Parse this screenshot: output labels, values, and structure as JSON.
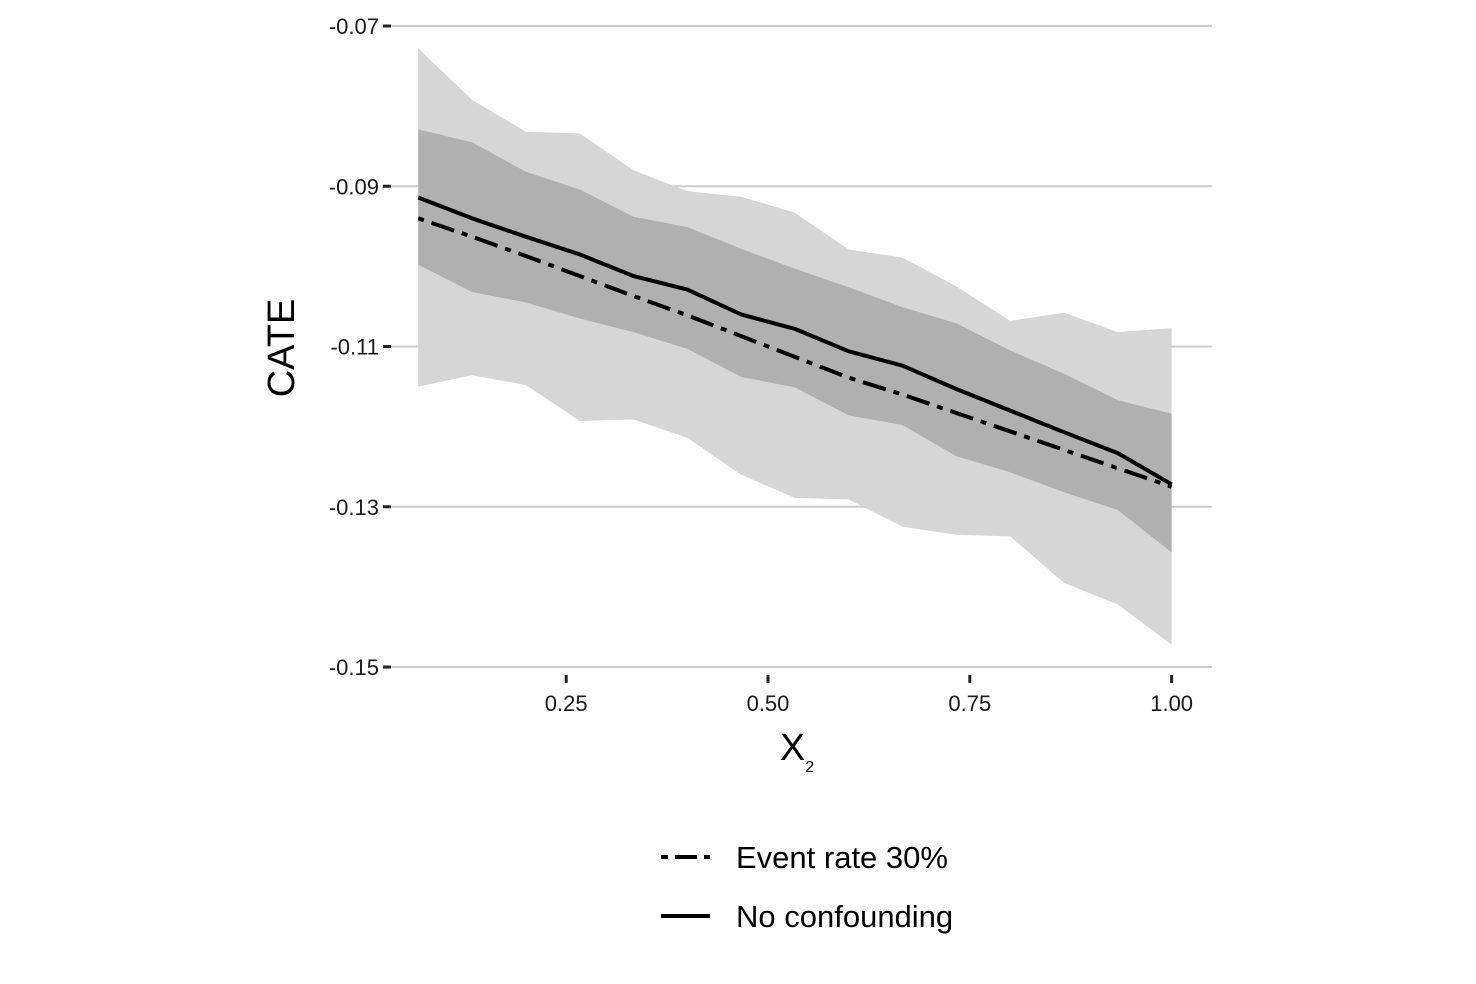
{
  "chart_data": {
    "type": "line",
    "title": "",
    "xlabel": "X",
    "xlabel_subscript": "2",
    "ylabel": "CATE",
    "xlim": [
      0.033,
      1.05
    ],
    "ylim": [
      -0.15,
      -0.07
    ],
    "grid": "horizontal",
    "xticks": [
      {
        "value": 0.25,
        "label": "0.25"
      },
      {
        "value": 0.5,
        "label": "0.50"
      },
      {
        "value": 0.75,
        "label": "0.75"
      },
      {
        "value": 1.0,
        "label": "1.00"
      }
    ],
    "yticks": [
      {
        "value": -0.07,
        "label": "-0.07"
      },
      {
        "value": -0.09,
        "label": "-0.09"
      },
      {
        "value": -0.11,
        "label": "-0.11"
      },
      {
        "value": -0.13,
        "label": "-0.13"
      },
      {
        "value": -0.15,
        "label": "-0.15"
      }
    ],
    "x": [
      0.0667,
      0.1333,
      0.2,
      0.2667,
      0.3333,
      0.4,
      0.4667,
      0.5333,
      0.6,
      0.6667,
      0.7333,
      0.8,
      0.8667,
      0.9333,
      1.0
    ],
    "bands": [
      {
        "name": "outer interval",
        "color": "#d6d6d6",
        "upper": [
          -0.0728,
          -0.0792,
          -0.0832,
          -0.0834,
          -0.088,
          -0.0906,
          -0.0913,
          -0.0933,
          -0.0979,
          -0.0989,
          -0.1025,
          -0.1068,
          -0.1058,
          -0.1082,
          -0.1077
        ],
        "lower": [
          -0.115,
          -0.1136,
          -0.1148,
          -0.1193,
          -0.1191,
          -0.1214,
          -0.126,
          -0.1289,
          -0.1291,
          -0.1325,
          -0.1335,
          -0.1337,
          -0.1395,
          -0.1422,
          -0.1472
        ]
      },
      {
        "name": "inner interval",
        "color": "#b0b0b0",
        "upper": [
          -0.0829,
          -0.0845,
          -0.0882,
          -0.0904,
          -0.0938,
          -0.0951,
          -0.0978,
          -0.1003,
          -0.1026,
          -0.1051,
          -0.1071,
          -0.1105,
          -0.1134,
          -0.1167,
          -0.1184
        ],
        "lower": [
          -0.0998,
          -0.1032,
          -0.1045,
          -0.1065,
          -0.1082,
          -0.1103,
          -0.1138,
          -0.1151,
          -0.1186,
          -0.1198,
          -0.1237,
          -0.1257,
          -0.1282,
          -0.1304,
          -0.1357
        ]
      }
    ],
    "series": [
      {
        "name": "Event rate 30%",
        "style": "dashdot",
        "values": [
          -0.094,
          -0.0963,
          -0.0987,
          -0.1012,
          -0.1037,
          -0.1061,
          -0.1087,
          -0.1113,
          -0.1139,
          -0.116,
          -0.1183,
          -0.1206,
          -0.1229,
          -0.1252,
          -0.1275
        ]
      },
      {
        "name": "No confounding",
        "style": "solid",
        "values": [
          -0.0914,
          -0.094,
          -0.0963,
          -0.0985,
          -0.1012,
          -0.1029,
          -0.106,
          -0.1078,
          -0.1106,
          -0.1124,
          -0.1153,
          -0.118,
          -0.1207,
          -0.1233,
          -0.1272
        ]
      }
    ],
    "legend": {
      "position": "bottom",
      "entries": [
        {
          "label": "Event rate 30%",
          "style": "dashdot"
        },
        {
          "label": "No confounding",
          "style": "solid"
        }
      ]
    }
  }
}
